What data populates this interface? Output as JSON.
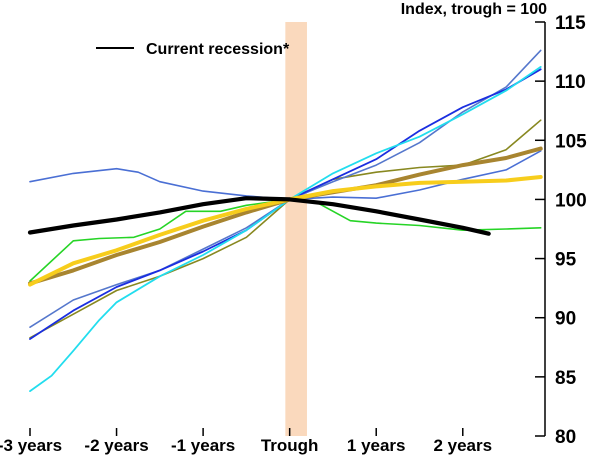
{
  "chart_data": {
    "type": "line",
    "ylabel": "Index, trough = 100",
    "ylim": [
      80,
      115
    ],
    "xlim": [
      -3,
      2.95
    ],
    "yticks": [
      80,
      85,
      90,
      95,
      100,
      105,
      110,
      115
    ],
    "xticks": [
      {
        "value": -3,
        "label": "-3 years"
      },
      {
        "value": -2,
        "label": "-2 years"
      },
      {
        "value": -1,
        "label": "-1 years"
      },
      {
        "value": 0,
        "label": "Trough"
      },
      {
        "value": 1,
        "label": "1 years"
      },
      {
        "value": 2,
        "label": "2 years"
      }
    ],
    "shaded_band": {
      "from": -0.05,
      "to": 0.2,
      "color": "#fad9bd"
    },
    "legend": {
      "placement": "top-left",
      "entries": [
        "Current recession*"
      ]
    },
    "grid": false,
    "series": [
      {
        "color": "#4a6fd4",
        "width": 1.6,
        "points": [
          [
            -3,
            101.5
          ],
          [
            -2.5,
            102.2
          ],
          [
            -2,
            102.6
          ],
          [
            -1.75,
            102.3
          ],
          [
            -1.5,
            101.5
          ],
          [
            -1,
            100.7
          ],
          [
            -0.5,
            100.3
          ],
          [
            0,
            100
          ],
          [
            0.5,
            100.2
          ],
          [
            1,
            100.1
          ],
          [
            1.5,
            100.8
          ],
          [
            2,
            101.7
          ],
          [
            2.5,
            102.5
          ],
          [
            2.9,
            104.1
          ]
        ]
      },
      {
        "color": "#26d426",
        "width": 1.6,
        "points": [
          [
            -3,
            93.1
          ],
          [
            -2.5,
            96.5
          ],
          [
            -2.2,
            96.7
          ],
          [
            -1.8,
            96.8
          ],
          [
            -1.5,
            97.5
          ],
          [
            -1.2,
            99
          ],
          [
            -0.8,
            99
          ],
          [
            -0.5,
            99.5
          ],
          [
            0,
            100
          ],
          [
            0.3,
            99.8
          ],
          [
            0.7,
            98.2
          ],
          [
            1,
            98
          ],
          [
            1.5,
            97.8
          ],
          [
            2,
            97.4
          ],
          [
            2.5,
            97.5
          ],
          [
            2.9,
            97.6
          ]
        ]
      },
      {
        "color": "#888820",
        "width": 1.6,
        "points": [
          [
            -3,
            88.3
          ],
          [
            -2.5,
            90.3
          ],
          [
            -2,
            92.3
          ],
          [
            -1.5,
            93.5
          ],
          [
            -1,
            95
          ],
          [
            -0.5,
            96.8
          ],
          [
            0,
            100
          ],
          [
            0.5,
            101.7
          ],
          [
            1,
            102.3
          ],
          [
            1.5,
            102.7
          ],
          [
            2,
            102.9
          ],
          [
            2.5,
            104.2
          ],
          [
            2.9,
            106.7
          ]
        ]
      },
      {
        "color": "#5577cc",
        "width": 1.6,
        "points": [
          [
            -3,
            89.2
          ],
          [
            -2.5,
            91.5
          ],
          [
            -2,
            92.8
          ],
          [
            -1.5,
            94
          ],
          [
            -1,
            95.8
          ],
          [
            -0.5,
            97.6
          ],
          [
            0,
            100
          ],
          [
            0.5,
            101.5
          ],
          [
            1,
            102.9
          ],
          [
            1.5,
            104.8
          ],
          [
            2,
            107.4
          ],
          [
            2.5,
            109.5
          ],
          [
            2.9,
            112.6
          ]
        ]
      },
      {
        "color": "#1a2ee0",
        "width": 1.8,
        "points": [
          [
            -3,
            88.2
          ],
          [
            -2.5,
            90.6
          ],
          [
            -2,
            92.6
          ],
          [
            -1.5,
            94
          ],
          [
            -1,
            95.6
          ],
          [
            -0.5,
            97.4
          ],
          [
            0,
            100
          ],
          [
            0.5,
            101.7
          ],
          [
            1,
            103.4
          ],
          [
            1.5,
            105.8
          ],
          [
            2,
            107.8
          ],
          [
            2.5,
            109.3
          ],
          [
            2.9,
            111
          ]
        ]
      },
      {
        "color": "#22ddee",
        "width": 1.8,
        "points": [
          [
            -3,
            83.8
          ],
          [
            -2.75,
            85.1
          ],
          [
            -2.5,
            87.2
          ],
          [
            -2.2,
            89.8
          ],
          [
            -2,
            91.3
          ],
          [
            -1.5,
            93.5
          ],
          [
            -1,
            95.3
          ],
          [
            -0.5,
            97.4
          ],
          [
            0,
            100
          ],
          [
            0.5,
            102.2
          ],
          [
            1,
            103.9
          ],
          [
            1.5,
            105.3
          ],
          [
            2,
            107.2
          ],
          [
            2.5,
            109.2
          ],
          [
            2.9,
            111.2
          ]
        ]
      },
      {
        "color": "#a88530",
        "width": 4,
        "points": [
          [
            -3,
            92.9
          ],
          [
            -2.5,
            94
          ],
          [
            -2,
            95.3
          ],
          [
            -1.5,
            96.4
          ],
          [
            -1,
            97.7
          ],
          [
            -0.5,
            98.9
          ],
          [
            0,
            100
          ],
          [
            0.5,
            100.6
          ],
          [
            1,
            101.2
          ],
          [
            1.5,
            102.1
          ],
          [
            2,
            102.9
          ],
          [
            2.5,
            103.5
          ],
          [
            2.9,
            104.3
          ]
        ]
      },
      {
        "color": "#f7cd1c",
        "width": 4,
        "points": [
          [
            -3,
            92.8
          ],
          [
            -2.5,
            94.6
          ],
          [
            -2,
            95.7
          ],
          [
            -1.5,
            97
          ],
          [
            -1,
            98.2
          ],
          [
            -0.5,
            99.2
          ],
          [
            0,
            100
          ],
          [
            0.5,
            100.7
          ],
          [
            1,
            101.1
          ],
          [
            1.5,
            101.4
          ],
          [
            2,
            101.5
          ],
          [
            2.5,
            101.6
          ],
          [
            2.9,
            101.9
          ]
        ]
      },
      {
        "name": "Current recession*",
        "color": "#000000",
        "width": 4.2,
        "points": [
          [
            -3,
            97.2
          ],
          [
            -2.5,
            97.8
          ],
          [
            -2,
            98.3
          ],
          [
            -1.5,
            98.9
          ],
          [
            -1,
            99.6
          ],
          [
            -0.5,
            100.1
          ],
          [
            0,
            100
          ],
          [
            0.5,
            99.6
          ],
          [
            1,
            99
          ],
          [
            1.5,
            98.3
          ],
          [
            2,
            97.6
          ],
          [
            2.3,
            97.1
          ]
        ]
      }
    ]
  }
}
